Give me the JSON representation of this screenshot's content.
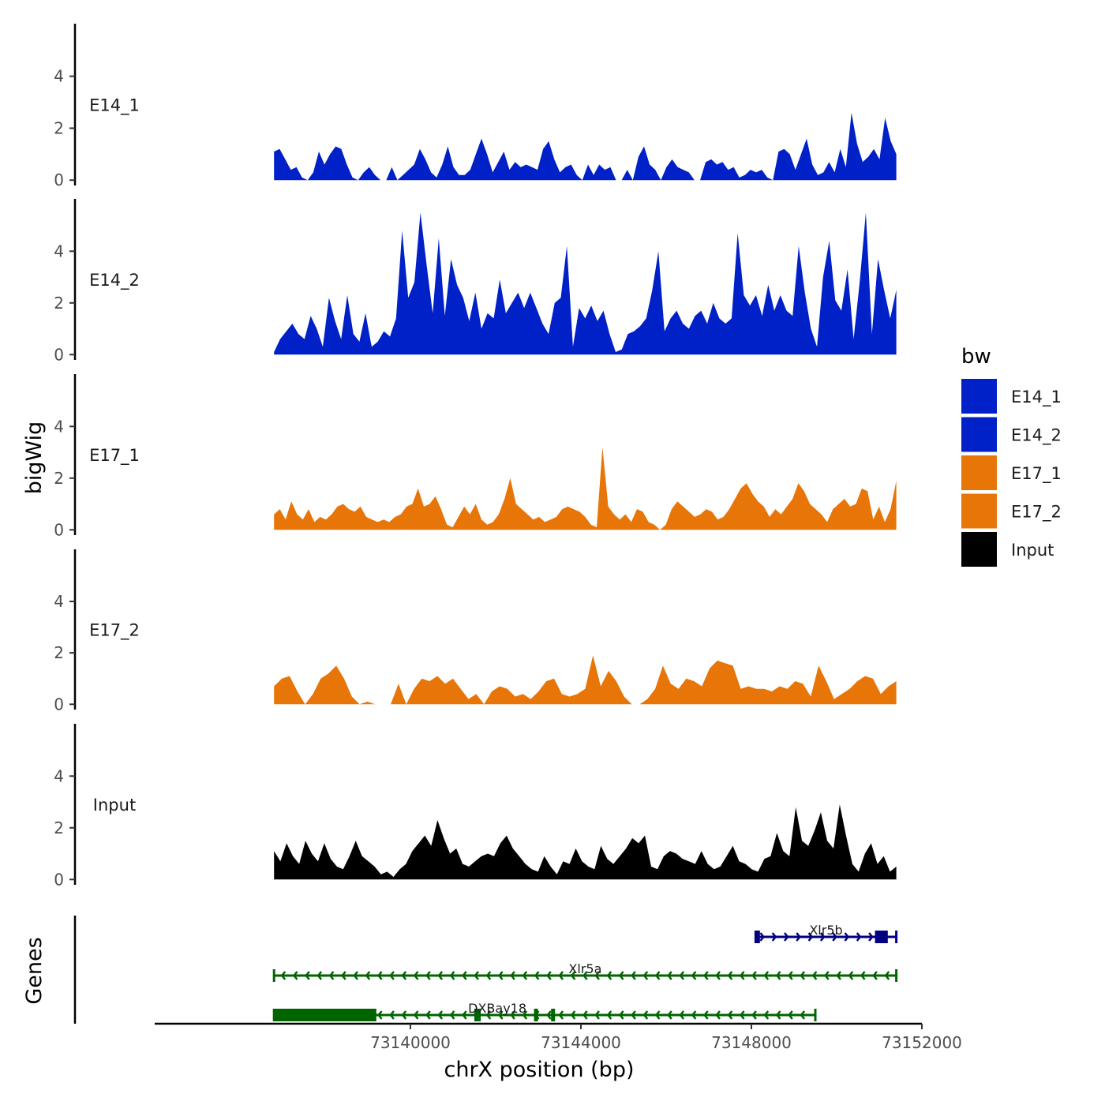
{
  "chart_data": {
    "type": "area",
    "title": "",
    "xlabel": "chrX position (bp)",
    "ylabel": "bigWig",
    "genes_label": "Genes",
    "x_range": [
      73136800,
      73151400
    ],
    "xlim": [
      73134000,
      73152000
    ],
    "x_ticks": [
      73140000,
      73144000,
      73148000,
      73152000
    ],
    "x_tick_labels": [
      "73140000",
      "73144000",
      "73148000",
      "73152000"
    ],
    "ylim": [
      0,
      6
    ],
    "y_ticks": [
      0,
      2,
      4
    ],
    "y_tick_labels": [
      "0",
      "2",
      "4"
    ],
    "legend_title": "bw",
    "series": [
      {
        "name": "E14_1",
        "color": "#0020c8",
        "values": [
          1.1,
          1.2,
          0.8,
          0.4,
          0.5,
          0.1,
          0,
          0.3,
          1.1,
          0.6,
          1.0,
          1.3,
          1.2,
          0.6,
          0.1,
          0,
          0.3,
          0.5,
          0.2,
          0,
          0,
          0.5,
          0,
          0.2,
          0.4,
          0.6,
          1.2,
          0.8,
          0.3,
          0.1,
          0.6,
          1.3,
          0.5,
          0.2,
          0.2,
          0.4,
          1.0,
          1.6,
          1.0,
          0.3,
          0.7,
          1.1,
          0.4,
          0.7,
          0.5,
          0.6,
          0.5,
          0.4,
          1.2,
          1.5,
          0.8,
          0.3,
          0.5,
          0.6,
          0.2,
          0,
          0.6,
          0.2,
          0.6,
          0.4,
          0.5,
          0,
          0,
          0.4,
          0,
          0.9,
          1.3,
          0.6,
          0.4,
          0,
          0.5,
          0.8,
          0.5,
          0.4,
          0.3,
          0,
          0,
          0.7,
          0.8,
          0.6,
          0.7,
          0.4,
          0.5,
          0.1,
          0.2,
          0.4,
          0.3,
          0.4,
          0.1,
          0,
          1.1,
          1.2,
          1.0,
          0.4,
          1.0,
          1.6,
          0.6,
          0.2,
          0.3,
          0.7,
          0.3,
          1.2,
          0.5,
          2.6,
          1.4,
          0.7,
          0.9,
          1.2,
          0.8,
          2.4,
          1.5,
          1.0
        ]
      },
      {
        "name": "E14_2",
        "color": "#0020c8",
        "values": [
          0.1,
          0.6,
          0.9,
          1.2,
          0.8,
          0.6,
          1.5,
          1.0,
          0.3,
          2.2,
          1.3,
          0.6,
          2.3,
          0.8,
          0.5,
          1.6,
          0.3,
          0.5,
          0.9,
          0.7,
          1.4,
          4.8,
          2.2,
          2.8,
          5.5,
          3.5,
          1.6,
          4.5,
          1.5,
          3.7,
          2.7,
          2.2,
          1.3,
          2.4,
          1.0,
          1.6,
          1.4,
          2.9,
          1.6,
          2.0,
          2.4,
          1.8,
          2.4,
          1.8,
          1.2,
          0.8,
          2.0,
          2.2,
          4.2,
          0.3,
          1.8,
          1.4,
          1.9,
          1.3,
          1.7,
          0.8,
          0.1,
          0.2,
          0.8,
          0.9,
          1.1,
          1.4,
          2.5,
          4.0,
          0.9,
          1.4,
          1.7,
          1.2,
          1.0,
          1.5,
          1.7,
          1.2,
          2.0,
          1.4,
          1.2,
          1.4,
          4.7,
          2.3,
          1.9,
          2.3,
          1.5,
          2.7,
          1.7,
          2.3,
          1.7,
          1.5,
          4.2,
          2.4,
          1.0,
          0.3,
          3.0,
          4.4,
          2.1,
          1.7,
          3.3,
          0.6,
          2.8,
          5.5,
          0.8,
          3.7,
          2.5,
          1.4,
          2.5
        ]
      },
      {
        "name": "E17_1",
        "color": "#e87508",
        "values": [
          0.6,
          0.8,
          0.4,
          1.1,
          0.6,
          0.4,
          0.8,
          0.3,
          0.5,
          0.4,
          0.6,
          0.9,
          1.0,
          0.8,
          0.7,
          0.9,
          0.5,
          0.4,
          0.3,
          0.4,
          0.3,
          0.5,
          0.6,
          0.9,
          1.0,
          1.6,
          0.9,
          1.0,
          1.3,
          0.8,
          0.2,
          0.1,
          0.5,
          0.9,
          0.6,
          1.0,
          0.4,
          0.2,
          0.3,
          0.6,
          1.2,
          2.0,
          1.0,
          0.8,
          0.6,
          0.4,
          0.5,
          0.3,
          0.4,
          0.5,
          0.8,
          0.9,
          0.8,
          0.7,
          0.5,
          0.2,
          0.1,
          3.2,
          0.9,
          0.6,
          0.4,
          0.6,
          0.3,
          0.8,
          0.7,
          0.3,
          0.2,
          0,
          0.2,
          0.8,
          1.1,
          0.9,
          0.7,
          0.5,
          0.6,
          0.8,
          0.7,
          0.4,
          0.5,
          0.8,
          1.2,
          1.6,
          1.8,
          1.4,
          1.1,
          0.9,
          0.5,
          0.8,
          0.6,
          0.9,
          1.2,
          1.8,
          1.5,
          1.0,
          0.8,
          0.6,
          0.3,
          0.8,
          1.0,
          1.2,
          0.9,
          1.0,
          1.6,
          1.5,
          0.4,
          0.9,
          0.3,
          0.8,
          1.9
        ]
      },
      {
        "name": "E17_2",
        "color": "#e87508",
        "values": [
          0.7,
          1.0,
          1.1,
          0.5,
          0,
          0.4,
          1.0,
          1.2,
          1.5,
          1.0,
          0.3,
          0,
          0.1,
          0,
          0,
          0,
          0.8,
          0,
          0.6,
          1.0,
          0.9,
          1.1,
          0.8,
          1.0,
          0.6,
          0.2,
          0.4,
          0,
          0.5,
          0.7,
          0.6,
          0.3,
          0.4,
          0.2,
          0.5,
          0.9,
          1.0,
          0.4,
          0.3,
          0.4,
          0.6,
          1.9,
          0.7,
          1.3,
          0.9,
          0.3,
          0,
          0,
          0.2,
          0.6,
          1.5,
          0.8,
          0.6,
          1.0,
          0.9,
          0.7,
          1.4,
          1.7,
          1.6,
          1.5,
          0.6,
          0.7,
          0.6,
          0.6,
          0.5,
          0.7,
          0.6,
          0.9,
          0.8,
          0.3,
          1.5,
          0.9,
          0.2,
          0.4,
          0.6,
          0.9,
          1.1,
          1.0,
          0.4,
          0.7,
          0.9
        ]
      },
      {
        "name": "Input",
        "color": "#000000",
        "values": [
          1.1,
          0.7,
          1.4,
          0.9,
          0.6,
          1.5,
          1.0,
          0.7,
          1.4,
          0.8,
          0.5,
          0.4,
          0.9,
          1.5,
          0.9,
          0.7,
          0.5,
          0.2,
          0.3,
          0.1,
          0.4,
          0.6,
          1.1,
          1.4,
          1.7,
          1.3,
          2.3,
          1.6,
          1.0,
          1.2,
          0.6,
          0.5,
          0.7,
          0.9,
          1.0,
          0.9,
          1.4,
          1.7,
          1.2,
          0.9,
          0.6,
          0.4,
          0.3,
          0.9,
          0.5,
          0.2,
          0.7,
          0.6,
          1.2,
          0.7,
          0.5,
          0.4,
          1.3,
          0.8,
          0.6,
          0.9,
          1.2,
          1.6,
          1.4,
          1.7,
          0.5,
          0.4,
          0.9,
          1.1,
          1.0,
          0.8,
          0.7,
          0.6,
          1.1,
          0.6,
          0.4,
          0.5,
          0.9,
          1.3,
          0.7,
          0.6,
          0.4,
          0.3,
          0.8,
          0.9,
          1.8,
          1.1,
          0.9,
          2.8,
          1.5,
          1.3,
          1.9,
          2.6,
          1.5,
          1.2,
          2.9,
          1.7,
          0.6,
          0.3,
          1.0,
          1.4,
          0.6,
          0.9,
          0.3,
          0.5
        ]
      }
    ],
    "genes": [
      {
        "name": "Xlr5b",
        "strand": "+",
        "color": "#000080",
        "start": 73148100,
        "end": 73151400,
        "exons": [
          [
            73148100,
            73148200
          ],
          [
            73150900,
            73151200
          ]
        ]
      },
      {
        "name": "Xlr5a",
        "strand": "-",
        "color": "#006400",
        "start": 73136800,
        "end": 73151400,
        "exons": []
      },
      {
        "name": "DXBay18",
        "strand": "-",
        "color": "#006400",
        "start": 73136800,
        "end": 73149500,
        "exons": [
          [
            73136800,
            73139200
          ],
          [
            73141500,
            73141650
          ],
          [
            73142900,
            73142960
          ],
          [
            73143300,
            73143340
          ]
        ]
      }
    ]
  }
}
